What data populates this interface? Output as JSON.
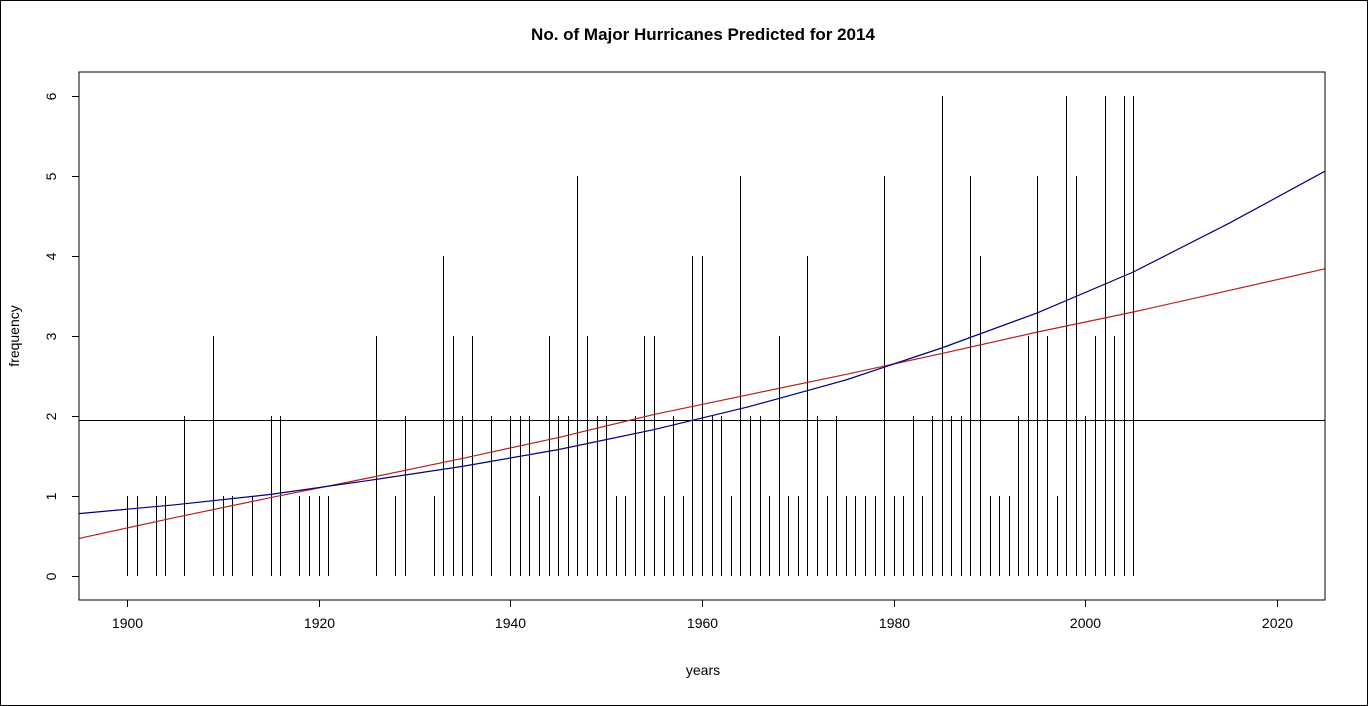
{
  "chart_data": {
    "type": "bar",
    "title": "No. of Major Hurricanes Predicted for 2014",
    "xlabel": "years",
    "ylabel": "frequency",
    "xlim": [
      1895,
      2025
    ],
    "ylim": [
      -0.3,
      6.3
    ],
    "x_ticks": [
      "1900",
      "1920",
      "1940",
      "1960",
      "1980",
      "2000",
      "2020"
    ],
    "y_ticks": [
      "0",
      "1",
      "2",
      "3",
      "4",
      "5",
      "6"
    ],
    "grid": false,
    "legend": "none",
    "bars": {
      "x": [
        1900,
        1901,
        1903,
        1904,
        1906,
        1909,
        1910,
        1911,
        1913,
        1915,
        1916,
        1918,
        1919,
        1920,
        1921,
        1926,
        1928,
        1929,
        1932,
        1933,
        1934,
        1935,
        1936,
        1938,
        1940,
        1941,
        1942,
        1943,
        1944,
        1945,
        1946,
        1947,
        1948,
        1949,
        1950,
        1951,
        1952,
        1953,
        1954,
        1955,
        1956,
        1957,
        1958,
        1959,
        1960,
        1961,
        1962,
        1963,
        1964,
        1965,
        1966,
        1967,
        1968,
        1969,
        1970,
        1971,
        1972,
        1973,
        1974,
        1975,
        1976,
        1977,
        1978,
        1979,
        1980,
        1981,
        1982,
        1983,
        1984,
        1985,
        1986,
        1987,
        1988,
        1989,
        1990,
        1991,
        1992,
        1993,
        1994,
        1995,
        1996,
        1997,
        1998,
        1999,
        2000,
        2001,
        2002,
        2003,
        2004,
        2005
      ],
      "values": [
        1,
        1,
        1,
        1,
        2,
        3,
        1,
        1,
        1,
        2,
        2,
        1,
        1,
        1,
        1,
        3,
        1,
        2,
        1,
        4,
        3,
        2,
        3,
        2,
        2,
        2,
        2,
        1,
        3,
        2,
        2,
        5,
        3,
        2,
        2,
        1,
        1,
        2,
        3,
        3,
        1,
        2,
        1,
        4,
        4,
        2,
        2,
        1,
        5,
        2,
        2,
        1,
        3,
        1,
        1,
        4,
        2,
        1,
        2,
        1,
        1,
        1,
        1,
        5,
        1,
        1,
        2,
        1,
        2,
        6,
        2,
        2,
        5,
        4,
        1,
        1,
        1,
        2,
        3,
        5,
        3,
        1,
        6,
        5,
        2,
        3,
        6,
        3,
        6,
        6
      ],
      "color": "#000000"
    },
    "series": [
      {
        "kind": "hline",
        "y": 1.95,
        "color": "#000000"
      },
      {
        "kind": "line",
        "color": "#b22222",
        "x": [
          1895,
          1905,
          1915,
          1925,
          1935,
          1945,
          1955,
          1965,
          1975,
          1985,
          1995,
          2005,
          2015,
          2025
        ],
        "y": [
          0.47,
          0.73,
          0.98,
          1.22,
          1.47,
          1.73,
          2.02,
          2.27,
          2.52,
          2.78,
          3.05,
          3.3,
          3.57,
          3.84
        ]
      },
      {
        "kind": "line",
        "color": "#00007f",
        "x": [
          1895,
          1905,
          1915,
          1925,
          1935,
          1945,
          1955,
          1965,
          1975,
          1985,
          1995,
          2005,
          2015,
          2025
        ],
        "y": [
          0.78,
          0.89,
          1.02,
          1.19,
          1.37,
          1.58,
          1.83,
          2.12,
          2.45,
          2.85,
          3.29,
          3.8,
          4.41,
          5.06
        ]
      }
    ]
  }
}
